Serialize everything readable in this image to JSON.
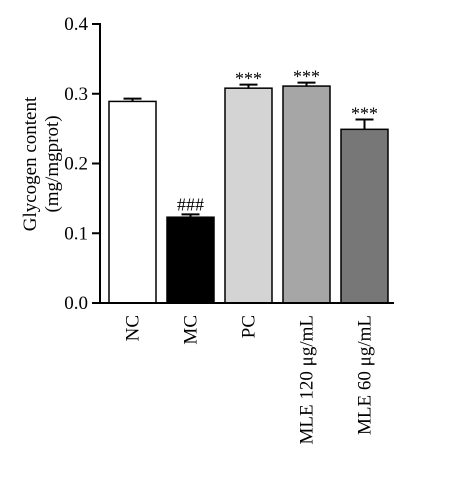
{
  "chart_data": {
    "type": "bar",
    "ylabel": [
      "Glycogen content",
      "(mg/mgprot)"
    ],
    "ylim": [
      0,
      0.4
    ],
    "yticks": [
      "0.0",
      "0.1",
      "0.2",
      "0.3",
      "0.4"
    ],
    "categories": [
      "NC",
      "MC",
      "PC",
      "MLE 120 μg/mL",
      "MLE 60 μg/mL"
    ],
    "values": [
      0.289,
      0.123,
      0.308,
      0.311,
      0.249
    ],
    "errors": [
      0.004,
      0.004,
      0.005,
      0.005,
      0.014
    ],
    "annotations": [
      "",
      "###",
      "***",
      "***",
      "***"
    ],
    "colors": [
      "#ffffff",
      "#000000",
      "#d4d4d4",
      "#a6a6a6",
      "#777777"
    ],
    "grid": false
  }
}
